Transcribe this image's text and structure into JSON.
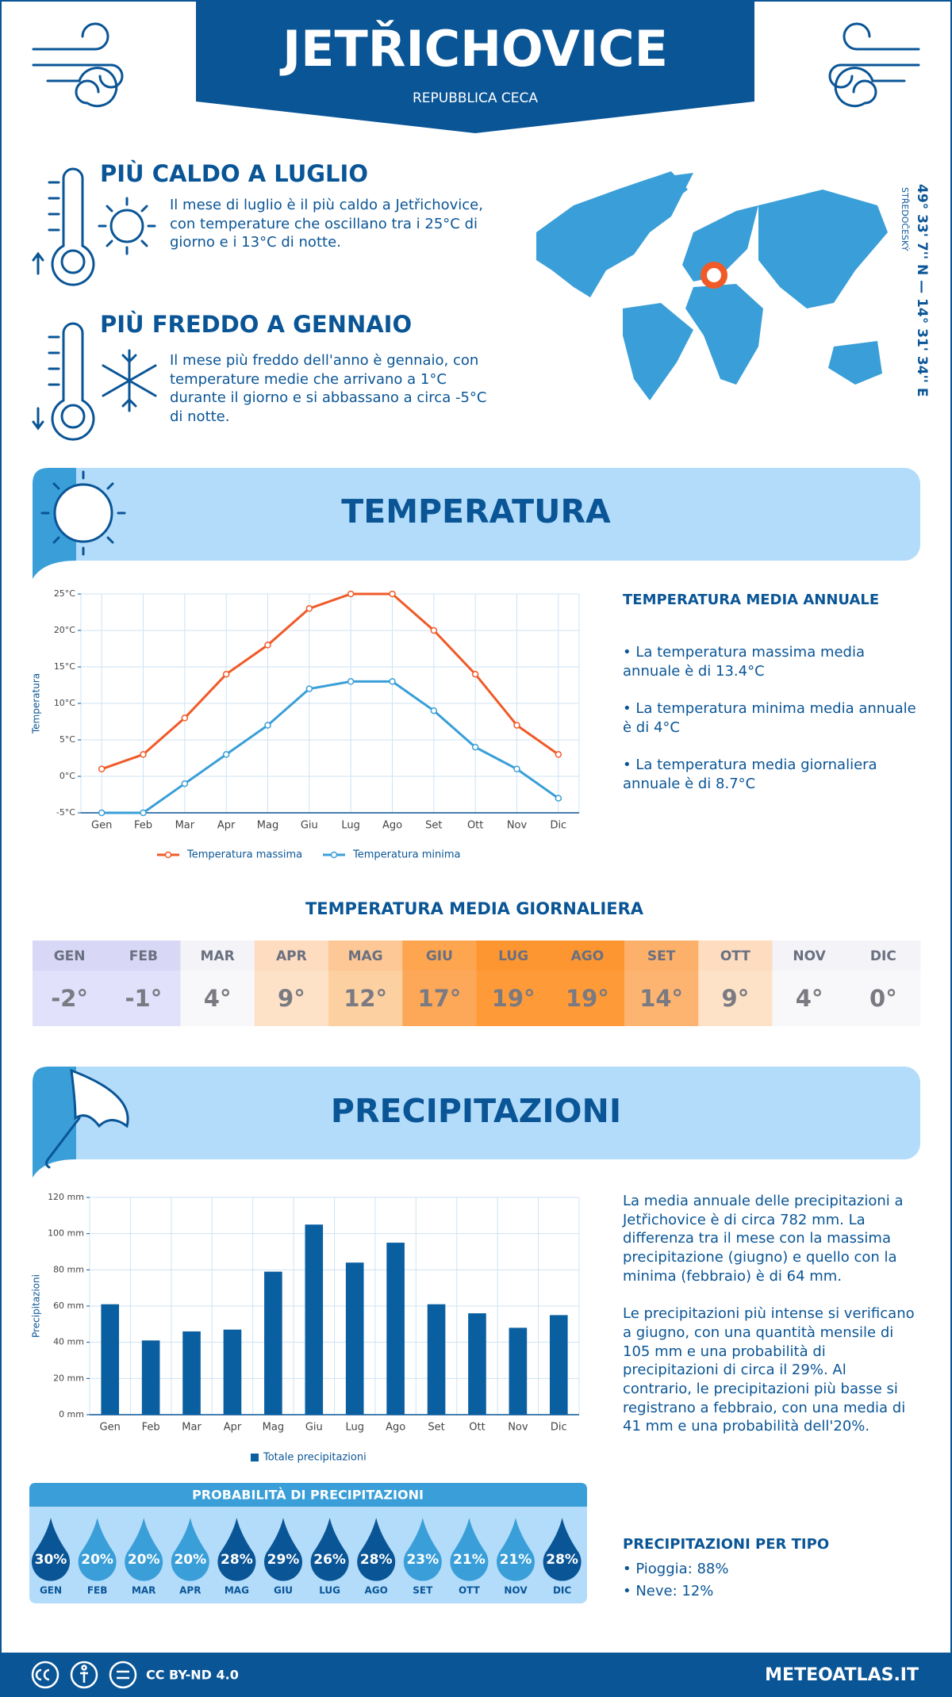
{
  "header": {
    "title": "JETŘICHOVICE",
    "subtitle": "REPUBBLICA CECA"
  },
  "highlights": [
    {
      "title": "PIÙ CALDO A LUGLIO",
      "text": "Il mese di luglio è il più caldo a Jetřichovice, con temperature che oscillano tra i 25°C di giorno e i 13°C di notte."
    },
    {
      "title": "PIÙ FREDDO A GENNAIO",
      "text": "Il mese più freddo dell'anno è gennaio, con temperature medie che arrivano a 1°C durante il giorno e si abbassano a circa -5°C di notte."
    }
  ],
  "map": {
    "coordinates": "49° 33' 7'' N — 14° 31' 34'' E",
    "region": "STŘEDOČESKÝ"
  },
  "temperature": {
    "title": "TEMPERATURA",
    "annual_title": "TEMPERATURA MEDIA ANNUALE",
    "annual_items": [
      "• La temperatura massima media annuale è di 13.4°C",
      "• La temperatura minima media annuale è di 4°C",
      "• La temperatura media giornaliera annuale è di 8.7°C"
    ],
    "daily_title": "TEMPERATURA MEDIA GIORNALIERA",
    "daily": {
      "months": [
        "GEN",
        "FEB",
        "MAR",
        "APR",
        "MAG",
        "GIU",
        "LUG",
        "AGO",
        "SET",
        "OTT",
        "NOV",
        "DIC"
      ],
      "values": [
        "-2°",
        "-1°",
        "4°",
        "9°",
        "12°",
        "17°",
        "19°",
        "19°",
        "14°",
        "9°",
        "4°",
        "0°"
      ]
    }
  },
  "chart_data": [
    {
      "type": "line",
      "y_label": "Temperatura",
      "categories": [
        "Gen",
        "Feb",
        "Mar",
        "Apr",
        "Mag",
        "Giu",
        "Lug",
        "Ago",
        "Set",
        "Ott",
        "Nov",
        "Dic"
      ],
      "series": [
        {
          "name": "Temperatura massima",
          "color": "#f05a28",
          "values": [
            1,
            3,
            8,
            14,
            18,
            23,
            25,
            25,
            20,
            14,
            7,
            3
          ]
        },
        {
          "name": "Temperatura minima",
          "color": "#3a9fd8",
          "values": [
            -5,
            -5,
            -1,
            3,
            7,
            12,
            13,
            13,
            9,
            4,
            1,
            -3
          ]
        }
      ],
      "ylim": [
        -5,
        25
      ],
      "yticks": [
        {
          "value": -5,
          "label": "-5°C"
        },
        {
          "value": 0,
          "label": "0°C"
        },
        {
          "value": 5,
          "label": "5°C"
        },
        {
          "value": 10,
          "label": "10°C"
        },
        {
          "value": 15,
          "label": "15°C"
        },
        {
          "value": 20,
          "label": "20°C"
        },
        {
          "value": 25,
          "label": "25°C"
        }
      ],
      "grid": true
    },
    {
      "type": "bar",
      "y_label": "Precipitazioni",
      "categories": [
        "Gen",
        "Feb",
        "Mar",
        "Apr",
        "Mag",
        "Giu",
        "Lug",
        "Ago",
        "Set",
        "Ott",
        "Nov",
        "Dic"
      ],
      "series": [
        {
          "name": "Totale precipitazioni",
          "color": "#0a5fa0",
          "values": [
            61,
            41,
            46,
            47,
            79,
            105,
            84,
            95,
            61,
            56,
            48,
            55
          ]
        }
      ],
      "ylim": [
        0,
        120
      ],
      "yticks": [
        {
          "value": 0,
          "label": "0 mm"
        },
        {
          "value": 20,
          "label": "20 mm"
        },
        {
          "value": 40,
          "label": "40 mm"
        },
        {
          "value": 60,
          "label": "60 mm"
        },
        {
          "value": 80,
          "label": "80 mm"
        },
        {
          "value": 100,
          "label": "100 mm"
        },
        {
          "value": 120,
          "label": "120 mm"
        }
      ],
      "grid": true
    }
  ],
  "precipitation": {
    "title": "PRECIPITAZIONI",
    "paragraphs": [
      "La media annuale delle precipitazioni a Jetřichovice è di circa 782 mm. La differenza tra il mese con la massima precipitazione (giugno) e quello con la minima (febbraio) è di 64 mm.",
      "Le precipitazioni più intense si verificano a giugno, con una quantità mensile di 105 mm e una probabilità di precipitazioni di circa il 29%. Al contrario, le precipitazioni più basse si registrano a febbraio, con una media di 41 mm e una probabilità dell'20%."
    ],
    "probability_title": "PROBABILITÀ DI PRECIPITAZIONI",
    "probability": {
      "months": [
        "GEN",
        "FEB",
        "MAR",
        "APR",
        "MAG",
        "GIU",
        "LUG",
        "AGO",
        "SET",
        "OTT",
        "NOV",
        "DIC"
      ],
      "values": [
        "30%",
        "20%",
        "20%",
        "20%",
        "28%",
        "29%",
        "26%",
        "28%",
        "23%",
        "21%",
        "21%",
        "28%"
      ]
    },
    "type_title": "PRECIPITAZIONI PER TIPO",
    "type_items": [
      "• Pioggia: 88%",
      "• Neve: 12%"
    ]
  },
  "footer": {
    "license": "CC BY-ND 4.0",
    "site": "METEOATLAS.IT"
  }
}
